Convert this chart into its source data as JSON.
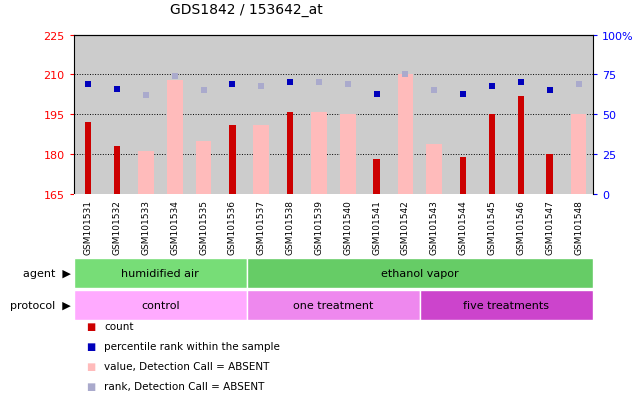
{
  "title": "GDS1842 / 153642_at",
  "samples": [
    "GSM101531",
    "GSM101532",
    "GSM101533",
    "GSM101534",
    "GSM101535",
    "GSM101536",
    "GSM101537",
    "GSM101538",
    "GSM101539",
    "GSM101540",
    "GSM101541",
    "GSM101542",
    "GSM101543",
    "GSM101544",
    "GSM101545",
    "GSM101546",
    "GSM101547",
    "GSM101548"
  ],
  "count_values": [
    192,
    183,
    null,
    null,
    null,
    191,
    null,
    196,
    null,
    null,
    178,
    null,
    null,
    179,
    195,
    202,
    180,
    null
  ],
  "value_absent": [
    null,
    null,
    181,
    208,
    185,
    null,
    191,
    null,
    196,
    195,
    null,
    210,
    184,
    null,
    null,
    null,
    null,
    195
  ],
  "rank_present": [
    69,
    66,
    null,
    null,
    null,
    69,
    null,
    70,
    null,
    null,
    63,
    null,
    null,
    63,
    68,
    70,
    65,
    null
  ],
  "rank_absent": [
    null,
    null,
    62,
    74,
    65,
    null,
    68,
    null,
    70,
    69,
    null,
    75,
    65,
    null,
    null,
    null,
    null,
    69
  ],
  "ylim_left": [
    165,
    225
  ],
  "ylim_right": [
    0,
    100
  ],
  "yticks_left": [
    165,
    180,
    195,
    210,
    225
  ],
  "yticks_right": [
    0,
    25,
    50,
    75,
    100
  ],
  "ytick_labels_right": [
    "0",
    "25",
    "50",
    "75",
    "100%"
  ],
  "grid_lines": [
    180,
    195,
    210
  ],
  "bar_color_count": "#cc0000",
  "bar_color_absent": "#ffbbbb",
  "dot_color_present": "#0000bb",
  "dot_color_absent": "#aaaacc",
  "bg_color": "#cccccc",
  "agent_humidified_color": "#77dd77",
  "agent_ethanol_color": "#66cc66",
  "proto_control_color": "#ffaaff",
  "proto_one_color": "#ee88ee",
  "proto_five_color": "#cc44cc"
}
